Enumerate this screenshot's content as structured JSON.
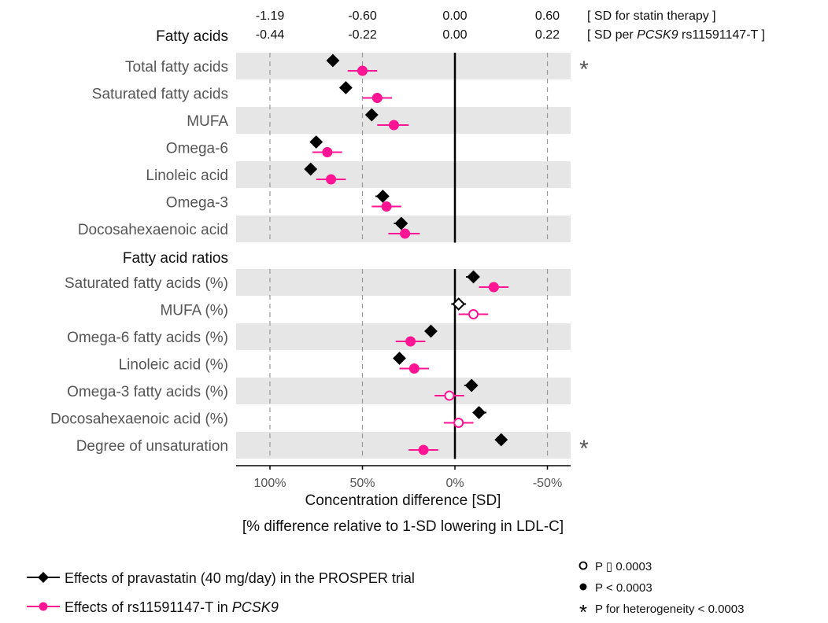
{
  "chart_data": {
    "type": "forest",
    "top_scales": [
      {
        "values": [
          "-1.19",
          "-0.60",
          "0.00",
          "0.60"
        ],
        "label": "[ SD for statin therapy ]"
      },
      {
        "values": [
          "-0.44",
          "-0.22",
          "0.00",
          "0.22"
        ],
        "label_prefix": "[ SD per ",
        "label_italic": "PCSK9",
        "label_suffix": " rs11591147-T ]"
      }
    ],
    "x_ticks": [
      "100%",
      "50%",
      "0%",
      "-50%"
    ],
    "x_tick_values": [
      100,
      50,
      0,
      -50
    ],
    "xlim": [
      118,
      -62
    ],
    "xlabel": "Concentration difference [SD]",
    "xlabel2": "[% difference relative to 1-SD lowering in LDL-C]",
    "sections": [
      {
        "title": "Fatty acids",
        "rows": [
          {
            "label": "Total fatty acids",
            "statin": 66,
            "statin_ci": [
              63,
              69
            ],
            "statin_sig": true,
            "pcsk9": 50,
            "pcsk9_ci": [
              42,
              58
            ],
            "pcsk9_sig": true,
            "heterogeneity": true
          },
          {
            "label": "Saturated fatty acids",
            "statin": 59,
            "statin_ci": [
              56,
              62
            ],
            "statin_sig": true,
            "pcsk9": 42,
            "pcsk9_ci": [
              34,
              50
            ],
            "pcsk9_sig": true,
            "heterogeneity": false
          },
          {
            "label": "MUFA",
            "statin": 45,
            "statin_ci": [
              42,
              48
            ],
            "statin_sig": true,
            "pcsk9": 33,
            "pcsk9_ci": [
              25,
              42
            ],
            "pcsk9_sig": true,
            "heterogeneity": false
          },
          {
            "label": "Omega-6",
            "statin": 75,
            "statin_ci": [
              72,
              78
            ],
            "statin_sig": true,
            "pcsk9": 69,
            "pcsk9_ci": [
              61,
              77
            ],
            "pcsk9_sig": true,
            "heterogeneity": false
          },
          {
            "label": "Linoleic acid",
            "statin": 78,
            "statin_ci": [
              75,
              81
            ],
            "statin_sig": true,
            "pcsk9": 67,
            "pcsk9_ci": [
              59,
              75
            ],
            "pcsk9_sig": true,
            "heterogeneity": false
          },
          {
            "label": "Omega-3",
            "statin": 39,
            "statin_ci": [
              36,
              43
            ],
            "statin_sig": true,
            "pcsk9": 37,
            "pcsk9_ci": [
              29,
              45
            ],
            "pcsk9_sig": true,
            "heterogeneity": false
          },
          {
            "label": "Docosahexaenoic acid",
            "statin": 29,
            "statin_ci": [
              26,
              33
            ],
            "statin_sig": true,
            "pcsk9": 27,
            "pcsk9_ci": [
              19,
              36
            ],
            "pcsk9_sig": true,
            "heterogeneity": false
          }
        ]
      },
      {
        "title": "Fatty acid ratios",
        "rows": [
          {
            "label": "Saturated fatty acids (%)",
            "statin": -10,
            "statin_ci": [
              -13,
              -6
            ],
            "statin_sig": true,
            "pcsk9": -21,
            "pcsk9_ci": [
              -29,
              -13
            ],
            "pcsk9_sig": true,
            "heterogeneity": false
          },
          {
            "label": "MUFA (%)",
            "statin": -2,
            "statin_ci": [
              -6,
              2
            ],
            "statin_sig": false,
            "pcsk9": -10,
            "pcsk9_ci": [
              -18,
              -2
            ],
            "pcsk9_sig": false,
            "heterogeneity": false
          },
          {
            "label": "Omega-6 fatty acids (%)",
            "statin": 13,
            "statin_ci": [
              10,
              16
            ],
            "statin_sig": true,
            "pcsk9": 24,
            "pcsk9_ci": [
              16,
              32
            ],
            "pcsk9_sig": true,
            "heterogeneity": false
          },
          {
            "label": "Linoleic acid (%)",
            "statin": 30,
            "statin_ci": [
              27,
              33
            ],
            "statin_sig": true,
            "pcsk9": 22,
            "pcsk9_ci": [
              14,
              30
            ],
            "pcsk9_sig": true,
            "heterogeneity": false
          },
          {
            "label": "Omega-3 fatty acids (%)",
            "statin": -9,
            "statin_ci": [
              -12,
              -5
            ],
            "statin_sig": true,
            "pcsk9": 3,
            "pcsk9_ci": [
              -5,
              11
            ],
            "pcsk9_sig": false,
            "heterogeneity": false
          },
          {
            "label": "Docosahexaenoic acid (%)",
            "statin": -13,
            "statin_ci": [
              -17,
              -10
            ],
            "statin_sig": true,
            "pcsk9": -2,
            "pcsk9_ci": [
              -10,
              6
            ],
            "pcsk9_sig": false,
            "heterogeneity": false
          },
          {
            "label": "Degree of unsaturation",
            "statin": -25,
            "statin_ci": [
              -28,
              -22
            ],
            "statin_sig": true,
            "pcsk9": 17,
            "pcsk9_ci": [
              9,
              25
            ],
            "pcsk9_sig": true,
            "heterogeneity": true
          }
        ]
      }
    ],
    "legend": {
      "series": [
        {
          "name": "Effects of pravastatin (40 mg/day) in the PROSPER trial",
          "color": "#000000",
          "marker": "diamond"
        },
        {
          "name_prefix": "Effects of rs11591147-T in ",
          "name_italic": "PCSK9",
          "color": "#ff1493",
          "marker": "circle"
        }
      ],
      "significance": [
        {
          "marker": "open-circle",
          "text": "P ▯ 0.0003"
        },
        {
          "marker": "filled-circle",
          "text": "P < 0.0003"
        },
        {
          "marker": "asterisk",
          "text": "P for heterogeneity < 0.0003"
        }
      ]
    },
    "colors": {
      "statin": "#000000",
      "pcsk9": "#ff1493",
      "band": "#e6e6e6",
      "grid": "#999999"
    }
  }
}
